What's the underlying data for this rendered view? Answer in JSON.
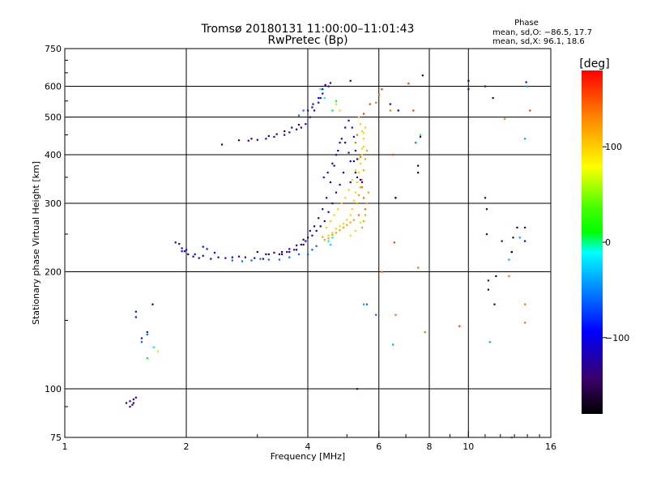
{
  "chart_data": {
    "type": "scatter",
    "title": "Tromsø 20180131 11:00:00–11:01:43",
    "subtitle": "RwPretec (Bp)",
    "xlabel": "Frequency [MHz]",
    "ylabel": "Stationary phase Virtual Height [km]",
    "x_scale": "log",
    "y_scale": "log",
    "xlim": [
      1,
      16
    ],
    "ylim": [
      75,
      750
    ],
    "x_ticks": [
      1,
      2,
      4,
      6,
      8,
      10,
      16
    ],
    "x_tick_labels": [
      "1",
      "2",
      "4",
      "6",
      "8",
      "10",
      "16"
    ],
    "y_ticks": [
      75,
      100,
      200,
      300,
      400,
      500,
      600,
      750
    ],
    "y_tick_labels": [
      "75",
      "100",
      "200",
      "300",
      "400",
      "500",
      "600",
      "750"
    ],
    "grid": true,
    "stats": {
      "header": "Phase",
      "line_o": "mean, sd,O: −86.5, 17.7",
      "line_x": "mean, sd,X:  96.1, 18.6"
    },
    "colorbar": {
      "label": "[deg]",
      "ticks": [
        100,
        0,
        -100
      ],
      "tick_labels": [
        "100",
        "0",
        "−100"
      ],
      "range": [
        -180,
        180
      ]
    },
    "series": [
      {
        "color_value": -120,
        "points": [
          [
            1.88,
            238
          ],
          [
            1.92,
            236
          ],
          [
            1.95,
            230
          ],
          [
            1.98,
            226
          ],
          [
            2.02,
            222
          ],
          [
            2.08,
            219
          ],
          [
            2.15,
            217
          ],
          [
            2.2,
            220
          ],
          [
            2.3,
            216
          ],
          [
            2.4,
            218
          ],
          [
            2.5,
            217
          ],
          [
            2.6,
            218
          ],
          [
            2.7,
            219
          ],
          [
            2.8,
            218
          ],
          [
            2.95,
            217
          ],
          [
            3.1,
            216
          ],
          [
            3.2,
            222
          ],
          [
            3.4,
            222
          ],
          [
            3.55,
            225
          ],
          [
            3.7,
            228
          ],
          [
            3.85,
            235
          ],
          [
            3.95,
            240
          ],
          [
            4.0,
            245
          ],
          [
            4.05,
            255
          ],
          [
            4.15,
            262
          ],
          [
            4.25,
            275
          ],
          [
            4.35,
            290
          ],
          [
            4.45,
            310
          ],
          [
            4.55,
            340
          ],
          [
            4.65,
            375
          ],
          [
            4.75,
            410
          ],
          [
            4.85,
            440
          ],
          [
            4.95,
            430
          ],
          [
            5.05,
            405
          ],
          [
            5.1,
            385
          ],
          [
            4.9,
            360
          ],
          [
            4.8,
            335
          ],
          [
            4.7,
            320
          ],
          [
            4.6,
            300
          ],
          [
            4.5,
            285
          ],
          [
            4.4,
            270
          ],
          [
            4.3,
            262
          ],
          [
            4.2,
            255
          ],
          [
            4.1,
            248
          ],
          [
            3.9,
            242
          ],
          [
            3.75,
            234
          ],
          [
            3.6,
            229
          ],
          [
            3.45,
            225
          ],
          [
            4.05,
            500
          ],
          [
            4.15,
            520
          ],
          [
            4.25,
            545
          ],
          [
            4.35,
            575
          ],
          [
            4.42,
            605
          ],
          [
            4.3,
            560
          ],
          [
            3.95,
            480
          ],
          [
            3.85,
            470
          ],
          [
            3.75,
            465
          ],
          [
            3.6,
            457
          ],
          [
            3.5,
            450
          ],
          [
            3.3,
            445
          ],
          [
            3.15,
            440
          ],
          [
            3.0,
            437
          ],
          [
            2.85,
            435
          ],
          [
            2.7,
            436
          ],
          [
            2.45,
            425
          ],
          [
            4.55,
            612
          ],
          [
            4.1,
            530
          ]
        ]
      },
      {
        "color_value": -150,
        "points": [
          [
            3.0,
            225
          ],
          [
            3.15,
            222
          ],
          [
            3.3,
            224
          ],
          [
            3.45,
            222
          ],
          [
            3.6,
            225
          ],
          [
            3.75,
            228
          ],
          [
            3.9,
            235
          ],
          [
            3.5,
            460
          ],
          [
            3.65,
            470
          ],
          [
            3.8,
            478
          ],
          [
            3.35,
            452
          ],
          [
            3.2,
            447
          ],
          [
            2.9,
            440
          ]
        ]
      },
      {
        "color_value": -90,
        "points": [
          [
            4.0,
            520
          ],
          [
            4.12,
            540
          ],
          [
            4.25,
            560
          ],
          [
            4.35,
            590
          ],
          [
            4.5,
            600
          ],
          [
            4.38,
            350
          ],
          [
            4.48,
            360
          ],
          [
            4.6,
            380
          ],
          [
            4.7,
            400
          ],
          [
            4.8,
            430
          ],
          [
            4.95,
            470
          ],
          [
            5.05,
            490
          ],
          [
            5.15,
            470
          ],
          [
            5.2,
            445
          ],
          [
            5.25,
            410
          ],
          [
            5.3,
            390
          ],
          [
            1.5,
            158
          ],
          [
            1.5,
            153
          ],
          [
            1.55,
            135
          ],
          [
            1.6,
            140
          ],
          [
            2.2,
            232
          ],
          [
            2.25,
            229
          ],
          [
            2.35,
            224
          ],
          [
            2.0,
            228
          ],
          [
            1.95,
            226
          ],
          [
            2.1,
            222
          ]
        ]
      },
      {
        "color_value": -60,
        "points": [
          [
            3.4,
            215
          ],
          [
            3.6,
            218
          ],
          [
            3.8,
            222
          ],
          [
            2.6,
            214
          ],
          [
            2.75,
            213
          ],
          [
            2.9,
            214
          ],
          [
            3.05,
            216
          ],
          [
            3.2,
            215
          ],
          [
            4.0,
            222
          ],
          [
            4.1,
            228
          ],
          [
            4.2,
            233
          ],
          [
            3.9,
            520
          ],
          [
            3.8,
            505
          ],
          [
            1.55,
            132
          ],
          [
            1.6,
            138
          ],
          [
            5.6,
            165
          ],
          [
            5.9,
            155
          ]
        ]
      },
      {
        "color_value": -20,
        "points": [
          [
            4.3,
            590
          ],
          [
            4.4,
            560
          ],
          [
            4.5,
            240
          ],
          [
            4.55,
            235
          ],
          [
            4.6,
            245
          ],
          [
            1.66,
            128
          ]
        ]
      },
      {
        "color_value": 60,
        "points": [
          [
            4.7,
            540
          ],
          [
            4.8,
            520
          ],
          [
            5.1,
            248
          ],
          [
            5.25,
            255
          ],
          [
            5.4,
            268
          ],
          [
            1.7,
            125
          ]
        ]
      },
      {
        "color_value": 100,
        "points": [
          [
            4.5,
            248
          ],
          [
            4.6,
            252
          ],
          [
            4.7,
            258
          ],
          [
            4.8,
            262
          ],
          [
            4.9,
            266
          ],
          [
            5.0,
            272
          ],
          [
            5.1,
            280
          ],
          [
            5.15,
            290
          ],
          [
            5.2,
            305
          ],
          [
            5.25,
            320
          ],
          [
            5.3,
            340
          ],
          [
            5.35,
            360
          ],
          [
            5.4,
            380
          ],
          [
            5.45,
            400
          ],
          [
            5.5,
            420
          ],
          [
            5.5,
            440
          ],
          [
            5.45,
            460
          ],
          [
            5.4,
            480
          ],
          [
            5.35,
            500
          ],
          [
            4.45,
            260
          ],
          [
            4.55,
            270
          ],
          [
            4.65,
            280
          ],
          [
            4.75,
            290
          ],
          [
            4.85,
            300
          ],
          [
            4.95,
            310
          ],
          [
            5.05,
            325
          ],
          [
            5.15,
            345
          ],
          [
            5.25,
            365
          ],
          [
            5.35,
            390
          ],
          [
            5.45,
            415
          ],
          [
            5.5,
            455
          ],
          [
            5.55,
            470
          ]
        ]
      },
      {
        "color_value": 120,
        "points": [
          [
            5.3,
            300
          ],
          [
            5.35,
            315
          ],
          [
            5.4,
            330
          ],
          [
            5.45,
            345
          ],
          [
            5.5,
            365
          ],
          [
            5.55,
            390
          ],
          [
            5.6,
            410
          ],
          [
            5.5,
            270
          ],
          [
            5.45,
            260
          ],
          [
            5.55,
            280
          ],
          [
            5.6,
            300
          ],
          [
            5.65,
            320
          ],
          [
            4.4,
            242
          ],
          [
            4.35,
            246
          ],
          [
            4.5,
            244
          ],
          [
            4.6,
            249
          ],
          [
            4.7,
            252
          ],
          [
            4.8,
            256
          ],
          [
            4.9,
            260
          ],
          [
            5.0,
            264
          ],
          [
            5.1,
            268
          ],
          [
            5.2,
            272
          ]
        ]
      },
      {
        "color_value": 140,
        "points": [
          [
            5.25,
            430
          ],
          [
            5.3,
            450
          ],
          [
            5.4,
            395
          ],
          [
            5.45,
            330
          ],
          [
            5.5,
            310
          ],
          [
            5.55,
            290
          ],
          [
            5.35,
            280
          ],
          [
            6.0,
            570
          ],
          [
            5.9,
            545
          ],
          [
            6.1,
            200
          ],
          [
            6.4,
            520
          ],
          [
            6.6,
            155
          ],
          [
            7.5,
            205
          ],
          [
            7.8,
            140
          ],
          [
            12.3,
            495
          ],
          [
            12.6,
            195
          ],
          [
            13.8,
            165
          ],
          [
            13.8,
            148
          ],
          [
            12.8,
            75
          ]
        ]
      },
      {
        "color_value": 160,
        "points": [
          [
            6.1,
            590
          ],
          [
            5.7,
            540
          ],
          [
            5.5,
            510
          ],
          [
            6.5,
            400
          ],
          [
            6.55,
            238
          ],
          [
            9.5,
            145
          ],
          [
            14.2,
            520
          ],
          [
            7.3,
            520
          ],
          [
            7.1,
            610
          ]
        ]
      },
      {
        "color_value": -130,
        "points": [
          [
            1.42,
            92
          ],
          [
            1.45,
            93
          ],
          [
            1.47,
            91
          ],
          [
            1.48,
            94
          ],
          [
            1.5,
            95
          ],
          [
            1.45,
            90
          ],
          [
            1.48,
            92
          ],
          [
            5.2,
            385
          ],
          [
            5.25,
            360
          ],
          [
            5.3,
            350
          ],
          [
            5.4,
            345
          ],
          [
            5.45,
            340
          ],
          [
            5.1,
            340
          ],
          [
            6.6,
            310
          ],
          [
            7.4,
            430
          ],
          [
            11.0,
            310
          ],
          [
            11.1,
            290
          ],
          [
            11.1,
            250
          ],
          [
            11.2,
            190
          ],
          [
            12.1,
            240
          ],
          [
            12.8,
            225
          ],
          [
            13.8,
            260
          ],
          [
            13.8,
            240
          ],
          [
            13.9,
            615
          ],
          [
            10.0,
            590
          ],
          [
            11.0,
            600
          ],
          [
            7.7,
            640
          ],
          [
            7.6,
            445
          ],
          [
            5.3,
            100
          ]
        ]
      },
      {
        "color_value": -160,
        "points": [
          [
            5.1,
            620
          ],
          [
            6.7,
            520
          ],
          [
            7.5,
            375
          ],
          [
            7.5,
            360
          ],
          [
            11.5,
            560
          ],
          [
            11.2,
            180
          ],
          [
            11.6,
            165
          ],
          [
            11.7,
            195
          ],
          [
            13.2,
            260
          ],
          [
            12.9,
            245
          ],
          [
            12.8,
            225
          ],
          [
            10.0,
            620
          ],
          [
            1.65,
            165
          ],
          [
            6.6,
            310
          ],
          [
            6.4,
            540
          ]
        ]
      },
      {
        "color_value": 10,
        "points": [
          [
            1.6,
            120
          ],
          [
            4.7,
            550
          ],
          [
            7.6,
            450
          ],
          [
            4.6,
            520
          ]
        ]
      },
      {
        "color_value": -40,
        "points": [
          [
            5.5,
            165
          ],
          [
            6.5,
            130
          ],
          [
            11.3,
            132
          ],
          [
            13.8,
            440
          ],
          [
            14.0,
            600
          ],
          [
            12.6,
            215
          ],
          [
            13.4,
            245
          ],
          [
            7.4,
            430
          ]
        ]
      }
    ]
  }
}
